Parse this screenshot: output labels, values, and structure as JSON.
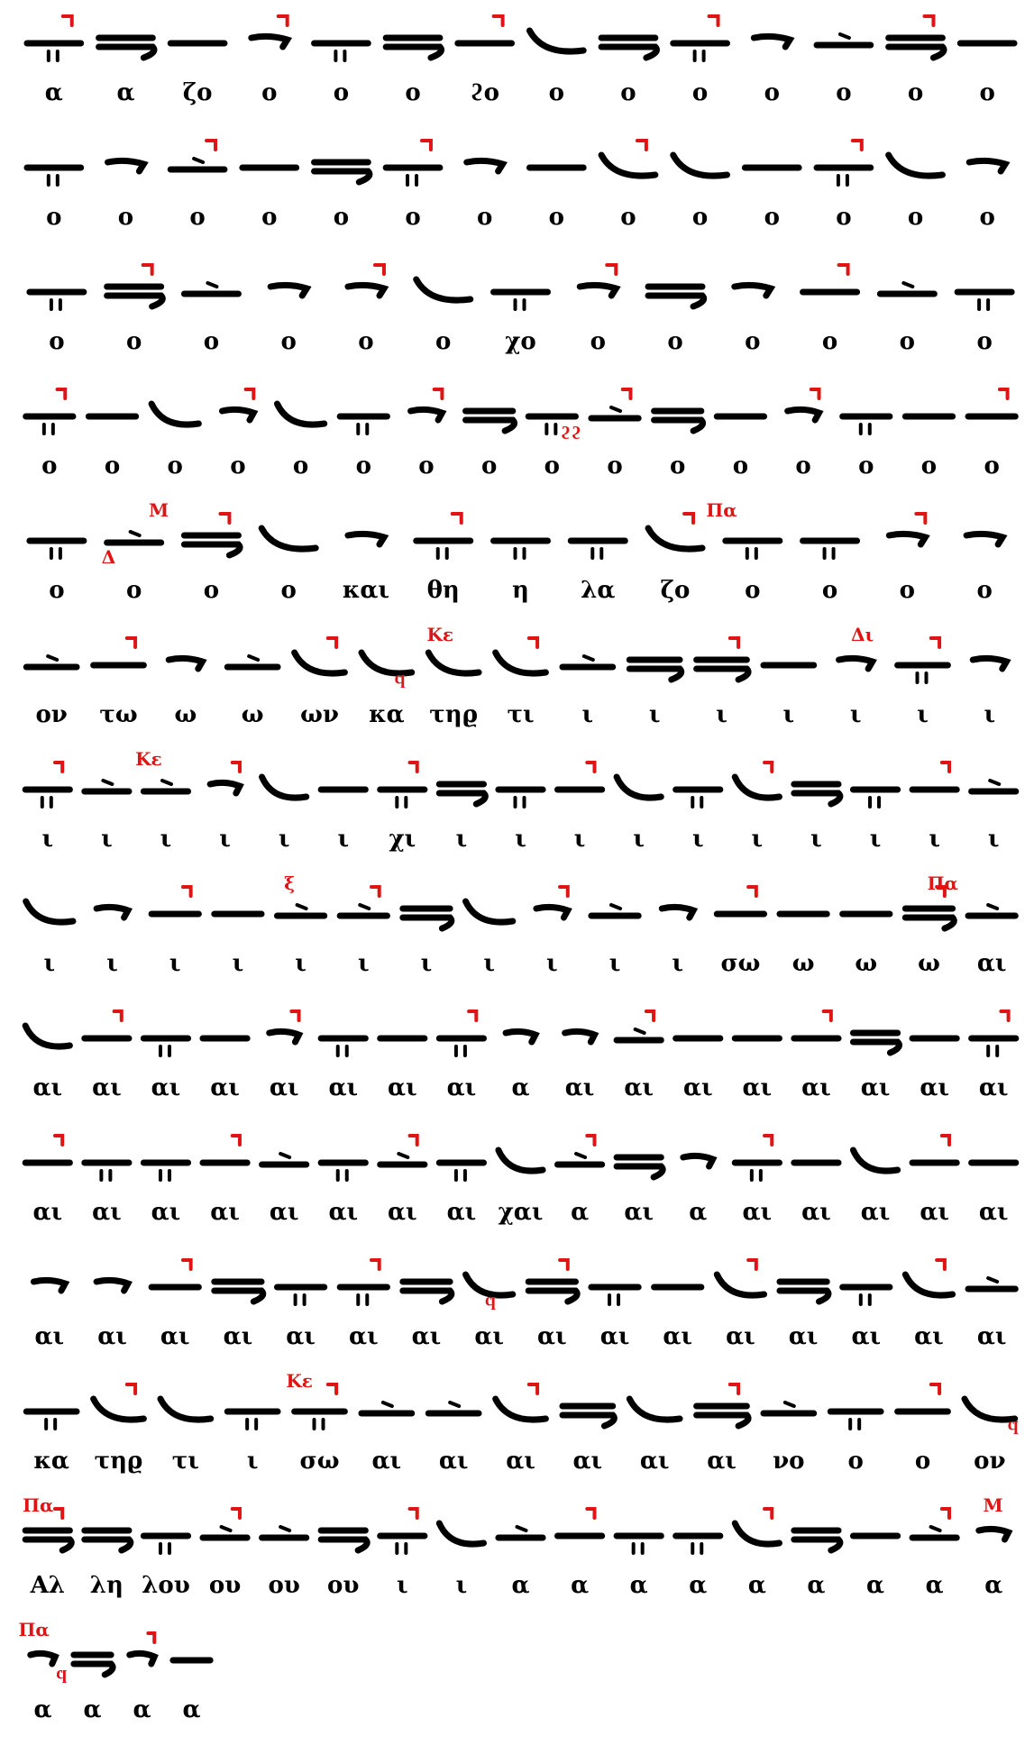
{
  "systems": [
    {
      "syllables": [
        "α",
        "α",
        "ζο",
        "ο",
        "ο",
        "ο",
        "ϩο",
        "ο",
        "ο",
        "ο",
        "ο",
        "ο",
        "ο",
        "ο"
      ],
      "marks": []
    },
    {
      "syllables": [
        "ο",
        "ο",
        "ο",
        "ο",
        "ο",
        "ο",
        "ο",
        "ο",
        "ο",
        "ο",
        "ο",
        "ο",
        "ο",
        "ο"
      ],
      "marks": []
    },
    {
      "syllables": [
        "ο",
        "ο",
        "ο",
        "ο",
        "ο",
        "ο",
        "χο",
        "ο",
        "ο",
        "ο",
        "ο",
        "ο",
        "ο"
      ],
      "marks": []
    },
    {
      "syllables": [
        "ο",
        "ο",
        "ο",
        "ο",
        "ο",
        "ο",
        "ο",
        "ο",
        "ο",
        "ο",
        "ο",
        "ο",
        "ο",
        "ο",
        "ο",
        "ο"
      ],
      "marks": [
        {
          "text": "ϩϩ",
          "pos": 55
        }
      ]
    },
    {
      "syllables": [
        "ο",
        "ο",
        "ο",
        "ο",
        "και",
        "θη",
        "η",
        "λα",
        "ζο",
        "ο",
        "ο",
        "ο",
        "ο"
      ],
      "marks": [
        {
          "text": "Μ",
          "pos": 14
        },
        {
          "text": "Πα",
          "pos": 70
        },
        {
          "text": "Δ",
          "pos": 9
        }
      ]
    },
    {
      "syllables": [
        "ον",
        "τω",
        "ω",
        "ω",
        "ων",
        "κα",
        "τηϱ",
        "τι",
        "ι",
        "ι",
        "ι",
        "ι",
        "ι",
        "ι",
        "ι"
      ],
      "marks": [
        {
          "text": "Κε",
          "pos": 42
        },
        {
          "text": "Δι",
          "pos": 84
        },
        {
          "text": "ϥ",
          "pos": 38
        }
      ]
    },
    {
      "syllables": [
        "ι",
        "ι",
        "ι",
        "ι",
        "ι",
        "ι",
        "χι",
        "ι",
        "ι",
        "ι",
        "ι",
        "ι",
        "ι",
        "ι",
        "ι",
        "ι",
        "ι"
      ],
      "marks": [
        {
          "text": "Κε",
          "pos": 13
        }
      ]
    },
    {
      "syllables": [
        "ι",
        "ι",
        "ι",
        "ι",
        "ι",
        "ι",
        "ι",
        "ι",
        "ι",
        "ι",
        "ι",
        "σω",
        "ω",
        "ω",
        "ω",
        "αι"
      ],
      "marks": [
        {
          "text": "ξ",
          "pos": 27
        },
        {
          "text": "Πα",
          "pos": 92
        }
      ]
    },
    {
      "syllables": [
        "αι",
        "αι",
        "αι",
        "αι",
        "αι",
        "αι",
        "αι",
        "αι",
        "α",
        "αι",
        "αι",
        "αι",
        "αι",
        "αι",
        "αι",
        "αι",
        "αι"
      ],
      "marks": []
    },
    {
      "syllables": [
        "αι",
        "αι",
        "αι",
        "αι",
        "αι",
        "αι",
        "αι",
        "αι",
        "χαι",
        "α",
        "αι",
        "α",
        "αι",
        "αι",
        "αι",
        "αι",
        "αι"
      ],
      "marks": []
    },
    {
      "syllables": [
        "αι",
        "αι",
        "αι",
        "αι",
        "αι",
        "αι",
        "αι",
        "αι",
        "αι",
        "αι",
        "αι",
        "αι",
        "αι",
        "αι",
        "αι",
        "αι"
      ],
      "marks": [
        {
          "text": "ϥ",
          "pos": 47
        }
      ]
    },
    {
      "syllables": [
        "κα",
        "τηϱ",
        "τι",
        "ι",
        "σω",
        "αι",
        "αι",
        "αι",
        "αι",
        "αι",
        "αι",
        "νο",
        "ο",
        "ο",
        "ον"
      ],
      "marks": [
        {
          "text": "Κε",
          "pos": 28
        },
        {
          "text": "ϥ",
          "pos": 99
        }
      ]
    },
    {
      "syllables": [
        "Αλ",
        "λη",
        "λου",
        "ου",
        "ου",
        "ου",
        "ι",
        "ι",
        "α",
        "α",
        "α",
        "α",
        "α",
        "α",
        "α",
        "α",
        "α"
      ],
      "marks": [
        {
          "text": "Πα",
          "pos": 2
        },
        {
          "text": "Μ",
          "pos": 97
        }
      ]
    },
    {
      "syllables": [
        "α",
        "α",
        "α",
        "α"
      ],
      "marks": [
        {
          "text": "Πα",
          "pos": 8
        },
        {
          "text": "ϥ",
          "pos": 22
        }
      ]
    }
  ]
}
